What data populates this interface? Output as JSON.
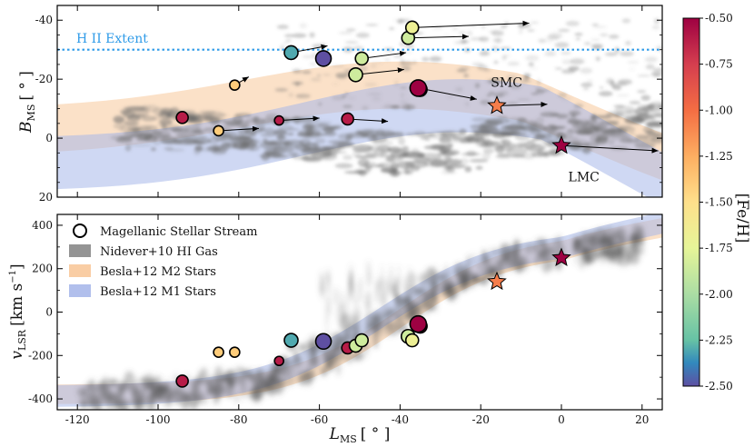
{
  "chart_data": [
    {
      "type": "scatter",
      "panel": "top",
      "xlim": [
        -125,
        25
      ],
      "ylim": [
        20,
        -45
      ],
      "ylabel_main": "B",
      "ylabel_sub": "MS",
      "ylabel_unit": "[ ° ]",
      "yticks": [
        -40,
        -20,
        0,
        20
      ],
      "grid": false,
      "hline": {
        "y": -30,
        "label": "H II Extent",
        "color": "#2f9be8"
      },
      "annotations": [
        {
          "text": "SMC",
          "x": -13,
          "y": -19
        },
        {
          "text": "LMC",
          "x": 3.5,
          "y": 13
        }
      ],
      "galaxies": [
        {
          "name": "SMC",
          "x": -16,
          "y": -11,
          "feh": -1.0
        },
        {
          "name": "LMC",
          "x": 0,
          "y": 2.5,
          "feh": -0.5
        }
      ],
      "stars": [
        {
          "x": -94,
          "y": -7,
          "feh": -0.6,
          "r": 6.5,
          "dx": 0,
          "dy": 0
        },
        {
          "x": -85,
          "y": -2.5,
          "feh": -1.3,
          "r": 5.5,
          "dx": 10,
          "dy": -0.8
        },
        {
          "x": -81,
          "y": -18,
          "feh": -1.3,
          "r": 5.5,
          "dx": 3.5,
          "dy": -2.8
        },
        {
          "x": -70,
          "y": -6,
          "feh": -0.6,
          "r": 5,
          "dx": 10,
          "dy": -0.8
        },
        {
          "x": -67,
          "y": -29,
          "feh": -2.15,
          "r": 7.5,
          "dx": 9,
          "dy": -2.3
        },
        {
          "x": -59,
          "y": -27,
          "feh": -2.5,
          "r": 8.5,
          "dx": 0,
          "dy": 0
        },
        {
          "x": -53,
          "y": -6.5,
          "feh": -0.6,
          "r": 6.5,
          "dx": 10,
          "dy": 0.8
        },
        {
          "x": -49.5,
          "y": -27,
          "feh": -1.7,
          "r": 7,
          "dx": 11,
          "dy": -2
        },
        {
          "x": -51,
          "y": -21.5,
          "feh": -1.7,
          "r": 7.5,
          "dx": 12,
          "dy": -1.8
        },
        {
          "x": -38,
          "y": -34,
          "feh": -1.7,
          "r": 7,
          "dx": 15,
          "dy": -0.5
        },
        {
          "x": -37,
          "y": -37.5,
          "feh": -1.55,
          "r": 7,
          "dx": 29,
          "dy": -1.5
        },
        {
          "x": -35,
          "y": -16.5,
          "feh": -0.4,
          "r": 7.5,
          "dx": 0,
          "dy": 0
        },
        {
          "x": -35.5,
          "y": -17,
          "feh": -0.45,
          "r": 9,
          "dx": 14.5,
          "dy": 3.8
        },
        {
          "x": -16,
          "y": -11,
          "feh": -1.0,
          "r": 0,
          "dx": 12.5,
          "dy": -0.5
        },
        {
          "x": 0,
          "y": 2.5,
          "feh": -0.5,
          "r": 0,
          "dx": 24,
          "dy": 1.8
        }
      ]
    },
    {
      "type": "scatter",
      "panel": "bottom",
      "xlim": [
        -125,
        25
      ],
      "ylim": [
        -450,
        450
      ],
      "xlabel_main": "L",
      "xlabel_sub": "MS",
      "xlabel_unit": "[ ° ]",
      "ylabel_main": "v",
      "ylabel_sub": "LSR",
      "ylabel_unit": "[km s",
      "ylabel_exp": "−1",
      "xticks": [
        -120,
        -100,
        -80,
        -60,
        -40,
        -20,
        0,
        20
      ],
      "yticks": [
        -400,
        -200,
        0,
        200,
        400
      ],
      "grid": false,
      "legend": {
        "placement": "upper-left",
        "entries": [
          {
            "label": "Magellanic Stellar Stream",
            "kind": "circle"
          },
          {
            "label": "Nidever+10 HI Gas",
            "kind": "patch",
            "color": "#888888"
          },
          {
            "label": "Besla+12 M2 Stars",
            "kind": "patch",
            "color": "#f8c89a"
          },
          {
            "label": "Besla+12 M1 Stars",
            "kind": "patch",
            "color": "#a8b8ea"
          }
        ]
      },
      "galaxies": [
        {
          "name": "SMC",
          "x": -16,
          "y": 140,
          "feh": -1.0
        },
        {
          "name": "LMC",
          "x": 0,
          "y": 250,
          "feh": -0.5
        }
      ],
      "stars": [
        {
          "x": -94,
          "y": -318,
          "feh": -0.6,
          "r": 6.5
        },
        {
          "x": -85,
          "y": -185,
          "feh": -1.3,
          "r": 5.5
        },
        {
          "x": -81,
          "y": -185,
          "feh": -1.3,
          "r": 5.5
        },
        {
          "x": -70,
          "y": -225,
          "feh": -0.6,
          "r": 5
        },
        {
          "x": -67,
          "y": -130,
          "feh": -2.15,
          "r": 7.5
        },
        {
          "x": -59,
          "y": -135,
          "feh": -2.5,
          "r": 8.5
        },
        {
          "x": -53,
          "y": -165,
          "feh": -0.6,
          "r": 6.5
        },
        {
          "x": -51,
          "y": -155,
          "feh": -1.7,
          "r": 7
        },
        {
          "x": -49.5,
          "y": -130,
          "feh": -1.7,
          "r": 7
        },
        {
          "x": -38,
          "y": -112,
          "feh": -1.7,
          "r": 7.5
        },
        {
          "x": -37,
          "y": -130,
          "feh": -1.55,
          "r": 7
        },
        {
          "x": -35,
          "y": -65,
          "feh": -0.4,
          "r": 7.5
        },
        {
          "x": -35.5,
          "y": -55,
          "feh": -0.45,
          "r": 9
        }
      ]
    }
  ],
  "colorbar": {
    "label": "[Fe/H]",
    "range": [
      -2.5,
      -0.5
    ],
    "ticks": [
      -0.5,
      -0.75,
      -1.0,
      -1.25,
      -1.5,
      -1.75,
      -2.0,
      -2.25,
      -2.5
    ],
    "tick_labels": [
      "-0.50",
      "-0.75",
      "-1.00",
      "-1.25",
      "-1.50",
      "-1.75",
      "-2.00",
      "-2.25",
      "-2.50"
    ],
    "colormap": "Spectral"
  }
}
